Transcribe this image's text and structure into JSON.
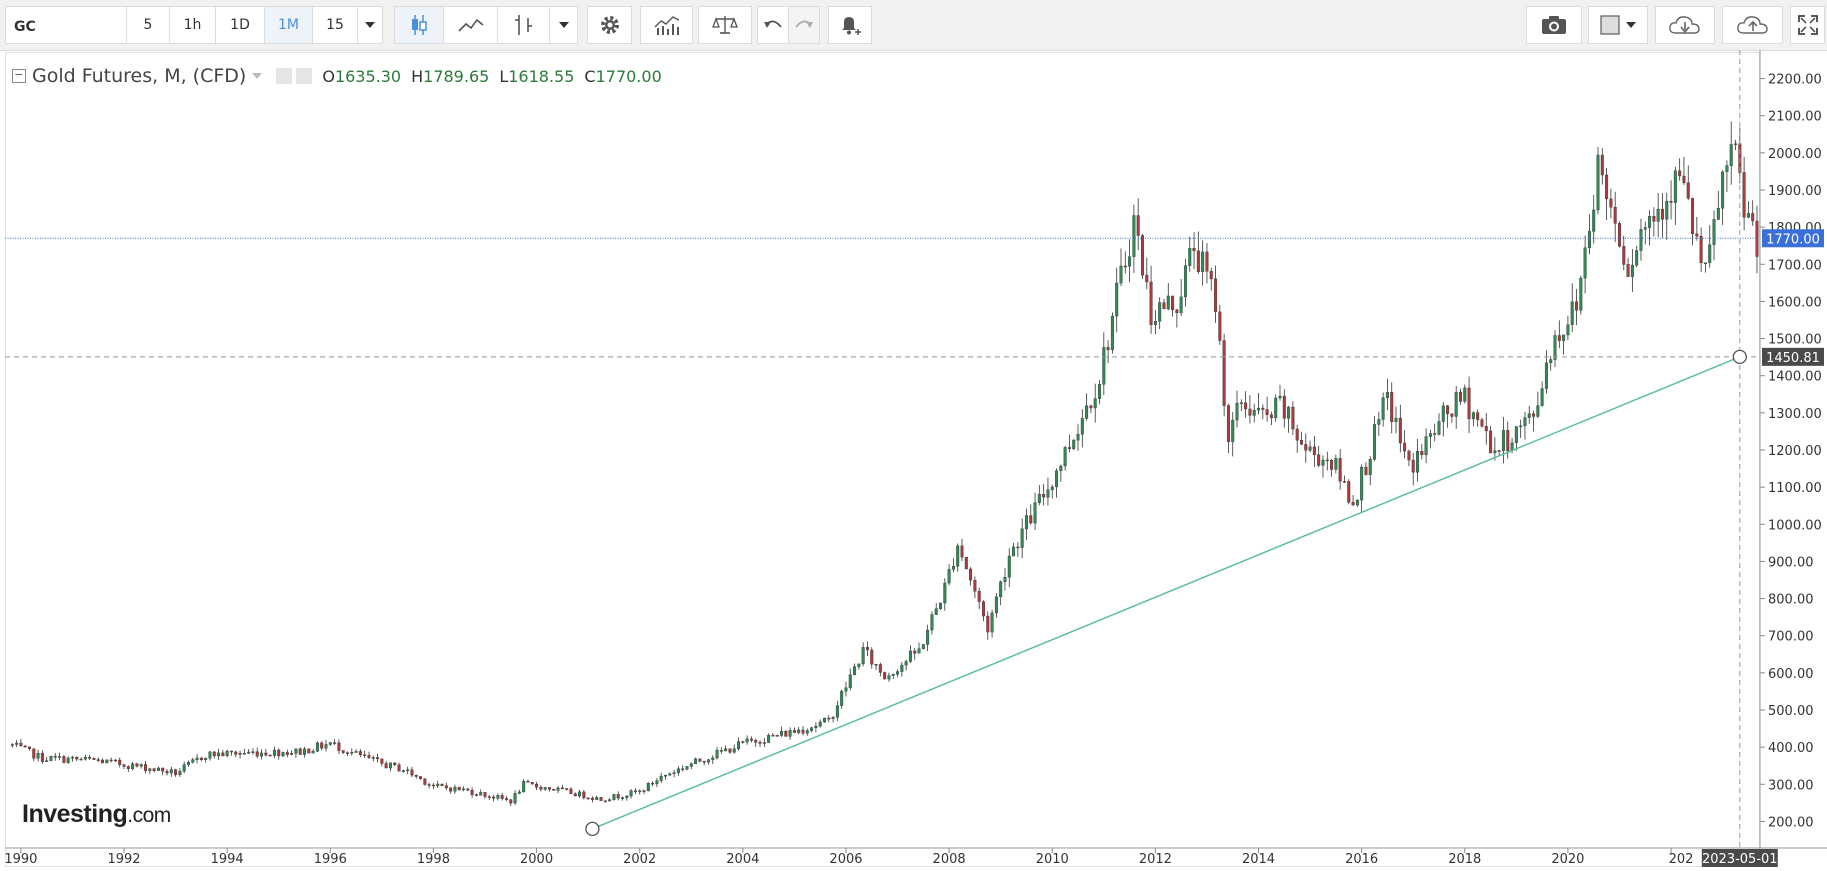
{
  "toolbar": {
    "symbol": "GC",
    "intervals": [
      "5",
      "1h",
      "1D",
      "1M",
      "15"
    ],
    "active_interval": "1M"
  },
  "legend": {
    "title": "Gold Futures, M, (CFD)",
    "open_label": "O",
    "open": "1635.30",
    "high_label": "H",
    "high": "1789.65",
    "low_label": "L",
    "low": "1618.55",
    "close_label": "C",
    "close": "1770.00"
  },
  "watermark": {
    "brand": "Investing",
    "suffix": ".com"
  },
  "colors": {
    "up": "#2e8b57",
    "down": "#b03a3a",
    "trendline": "#5bbf9a",
    "last_price": "#3b6fd8",
    "crosshair_label": "#4a4a4a"
  },
  "chart_data": {
    "type": "candlestick",
    "title": "Gold Futures, M, (CFD)",
    "x_ticks": [
      "1990",
      "1992",
      "1994",
      "1996",
      "1998",
      "2000",
      "2002",
      "2004",
      "2006",
      "2008",
      "2010",
      "2012",
      "2014",
      "2016",
      "2018",
      "2020",
      "202"
    ],
    "y_ticks": [
      200,
      300,
      400,
      500,
      600,
      700,
      800,
      900,
      1000,
      1100,
      1200,
      1300,
      1400,
      1500,
      1600,
      1700,
      1800,
      1900,
      2000,
      2100,
      2200
    ],
    "y_tick_labels": [
      "200.00",
      "300.00",
      "400.00",
      "500.00",
      "600.00",
      "700.00",
      "800.00",
      "900.00",
      "1000.00",
      "1100.00",
      "1200.00",
      "1300.00",
      "1400.00",
      "1500.00",
      "1600.00",
      "1700.00",
      "1800.00",
      "1900.00",
      "2000.00",
      "2100.00",
      "2200.00"
    ],
    "ylim": [
      150,
      2250
    ],
    "xlim": [
      "1989-10",
      "2023-09"
    ],
    "price_anchors": [
      [
        "1989-11",
        405
      ],
      [
        "1990-06",
        370
      ],
      [
        "1991-06",
        365
      ],
      [
        "1992-06",
        345
      ],
      [
        "1993-01",
        330
      ],
      [
        "1993-08",
        380
      ],
      [
        "1994-06",
        385
      ],
      [
        "1995-06",
        388
      ],
      [
        "1996-01",
        410
      ],
      [
        "1996-06",
        385
      ],
      [
        "1997-01",
        355
      ],
      [
        "1997-06",
        340
      ],
      [
        "1998-01",
        295
      ],
      [
        "1998-08",
        285
      ],
      [
        "1999-07",
        255
      ],
      [
        "1999-10",
        300
      ],
      [
        "2000-06",
        285
      ],
      [
        "2001-04",
        260
      ],
      [
        "2002-01",
        280
      ],
      [
        "2002-06",
        320
      ],
      [
        "2003-01",
        355
      ],
      [
        "2004-01",
        410
      ],
      [
        "2004-12",
        440
      ],
      [
        "2005-09",
        470
      ],
      [
        "2006-05",
        660
      ],
      [
        "2006-10",
        590
      ],
      [
        "2007-06",
        660
      ],
      [
        "2007-12",
        830
      ],
      [
        "2008-03",
        950
      ],
      [
        "2008-10",
        720
      ],
      [
        "2009-03",
        920
      ],
      [
        "2009-12",
        1100
      ],
      [
        "2010-06",
        1240
      ],
      [
        "2010-12",
        1400
      ],
      [
        "2011-08",
        1820
      ],
      [
        "2011-12",
        1570
      ],
      [
        "2012-06",
        1600
      ],
      [
        "2012-10",
        1750
      ],
      [
        "2013-03",
        1600
      ],
      [
        "2013-06",
        1230
      ],
      [
        "2013-09",
        1330
      ],
      [
        "2014-03",
        1280
      ],
      [
        "2014-06",
        1320
      ],
      [
        "2014-12",
        1200
      ],
      [
        "2015-06",
        1170
      ],
      [
        "2015-11",
        1060
      ],
      [
        "2016-07",
        1340
      ],
      [
        "2016-12",
        1150
      ],
      [
        "2017-09",
        1300
      ],
      [
        "2018-01",
        1340
      ],
      [
        "2018-08",
        1200
      ],
      [
        "2019-05",
        1290
      ],
      [
        "2019-09",
        1480
      ],
      [
        "2020-03",
        1590
      ],
      [
        "2020-08",
        1970
      ],
      [
        "2021-03",
        1700
      ],
      [
        "2021-06",
        1790
      ],
      [
        "2022-03",
        1940
      ],
      [
        "2022-09",
        1660
      ],
      [
        "2023-01",
        1930
      ],
      [
        "2023-04",
        1990
      ],
      [
        "2023-06",
        1850
      ],
      [
        "2023-09",
        1770
      ]
    ],
    "last_price": 1770.0,
    "last_price_label": "1770.00",
    "trendline": {
      "start": [
        "2001-02",
        180
      ],
      "end": [
        "2023-05",
        1450.81
      ]
    },
    "crosshair": {
      "price": 1450.81,
      "price_label": "1450.81",
      "date_label": "2023-05-01"
    },
    "grid": false
  }
}
